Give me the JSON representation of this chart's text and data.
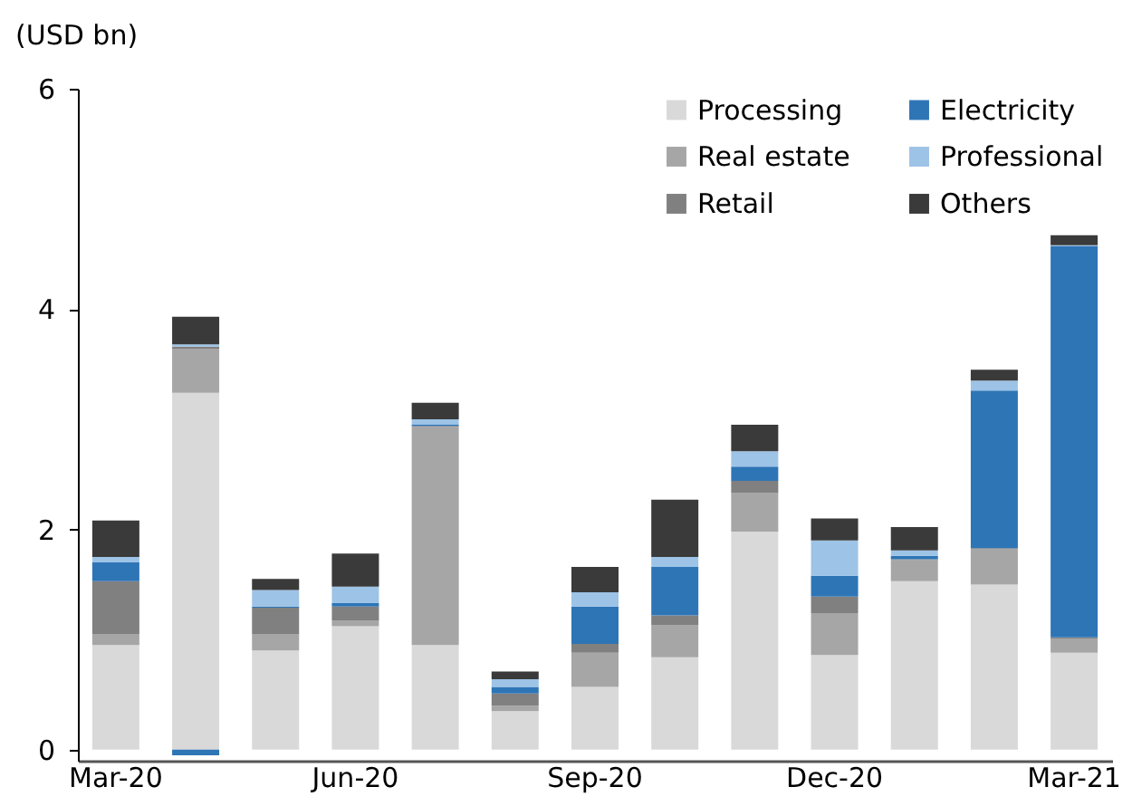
{
  "chart_data": {
    "type": "bar",
    "stacked": true,
    "ylabel": "(USD bn)",
    "categories": [
      "Mar-20",
      null,
      null,
      "Jun-20",
      null,
      null,
      "Sep-20",
      null,
      null,
      "Dec-20",
      null,
      null,
      "Mar-21"
    ],
    "series": [
      {
        "name": "Processing",
        "color": "#d9d9d9",
        "values": [
          0.95,
          3.24,
          0.9,
          1.12,
          0.95,
          0.35,
          0.57,
          0.84,
          1.98,
          0.86,
          1.53,
          1.5,
          0.88
        ]
      },
      {
        "name": "Real estate",
        "color": "#a6a6a6",
        "values": [
          0.1,
          0.4,
          0.15,
          0.05,
          1.98,
          0.05,
          0.31,
          0.29,
          0.35,
          0.38,
          0.19,
          0.32,
          0.13
        ]
      },
      {
        "name": "Retail",
        "color": "#808080",
        "values": [
          0.48,
          0.02,
          0.24,
          0.13,
          0.01,
          0.11,
          0.08,
          0.09,
          0.11,
          0.15,
          0.01,
          0.01,
          0.01
        ]
      },
      {
        "name": "Electricity",
        "color": "#2e75b6",
        "values": [
          0.17,
          -0.05,
          0.01,
          0.03,
          0.01,
          0.06,
          0.34,
          0.44,
          0.13,
          0.19,
          0.03,
          1.43,
          3.55
        ]
      },
      {
        "name": "Professional",
        "color": "#9dc3e6",
        "values": [
          0.05,
          0.02,
          0.15,
          0.15,
          0.05,
          0.07,
          0.13,
          0.09,
          0.14,
          0.32,
          0.05,
          0.09,
          0.01
        ]
      },
      {
        "name": "Others",
        "color": "#3a3a3a",
        "values": [
          0.33,
          0.25,
          0.1,
          0.3,
          0.15,
          0.07,
          0.23,
          0.52,
          0.24,
          0.2,
          0.21,
          0.1,
          0.09
        ]
      }
    ],
    "ylim": [
      -0.1,
      6
    ],
    "yticks": [
      0,
      2,
      4,
      6
    ],
    "grid": false,
    "legend": "top right"
  }
}
